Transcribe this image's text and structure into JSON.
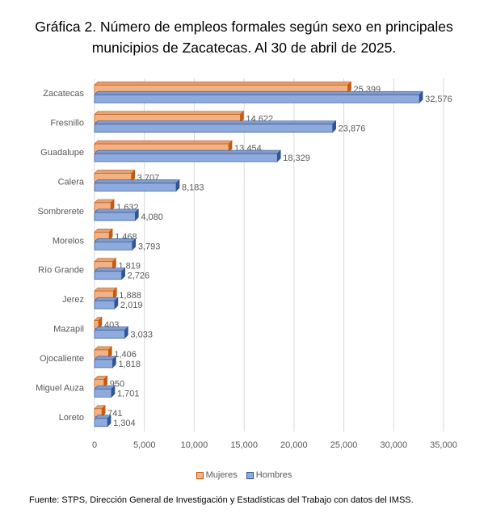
{
  "title_lines": [
    "Gráfica 2. Número de empleos formales según sexo en principales",
    "municipios de Zacatecas. Al 30 de abril de 2025."
  ],
  "source": "Fuente: STPS, Dirección General de Investigación y Estadísticas del Trabajo con datos del IMSS.",
  "chart_data": {
    "type": "bar",
    "orientation": "horizontal",
    "categories": [
      "Zacatecas",
      "Fresnillo",
      "Guadalupe",
      "Calera",
      "Sombrerete",
      "Morelos",
      "Río Grande",
      "Jerez",
      "Mazapil",
      "Ojocaliente",
      "Miguel Auza",
      "Loreto"
    ],
    "series": [
      {
        "name": "Mujeres",
        "color": "#F4B183",
        "edge": "#C55A11",
        "values": [
          25399,
          14622,
          13454,
          3707,
          1632,
          1468,
          1819,
          1888,
          403,
          1406,
          950,
          741
        ],
        "labels": [
          "25,399",
          "14,622",
          "13,454",
          "3,707",
          "1,632",
          "1,468",
          "1,819",
          "1,888",
          "403",
          "1,406",
          "950",
          "741"
        ]
      },
      {
        "name": "Hombres",
        "color": "#8FAADC",
        "edge": "#2F5597",
        "values": [
          32576,
          23876,
          18329,
          8183,
          4080,
          3793,
          2726,
          2019,
          3033,
          1818,
          1701,
          1304
        ],
        "labels": [
          "32,576",
          "23,876",
          "18,329",
          "8,183",
          "4,080",
          "3,793",
          "2,726",
          "2,019",
          "3,033",
          "1,818",
          "1,701",
          "1,304"
        ]
      }
    ],
    "xlim": [
      0,
      35000
    ],
    "xticks": [
      0,
      5000,
      10000,
      15000,
      20000,
      25000,
      30000,
      35000
    ],
    "xtick_labels": [
      "0",
      "5,000",
      "10,000",
      "15,000",
      "20,000",
      "25,000",
      "30,000",
      "35,000"
    ],
    "grid": true,
    "legend_position": "bottom",
    "style": "3d-bars"
  }
}
